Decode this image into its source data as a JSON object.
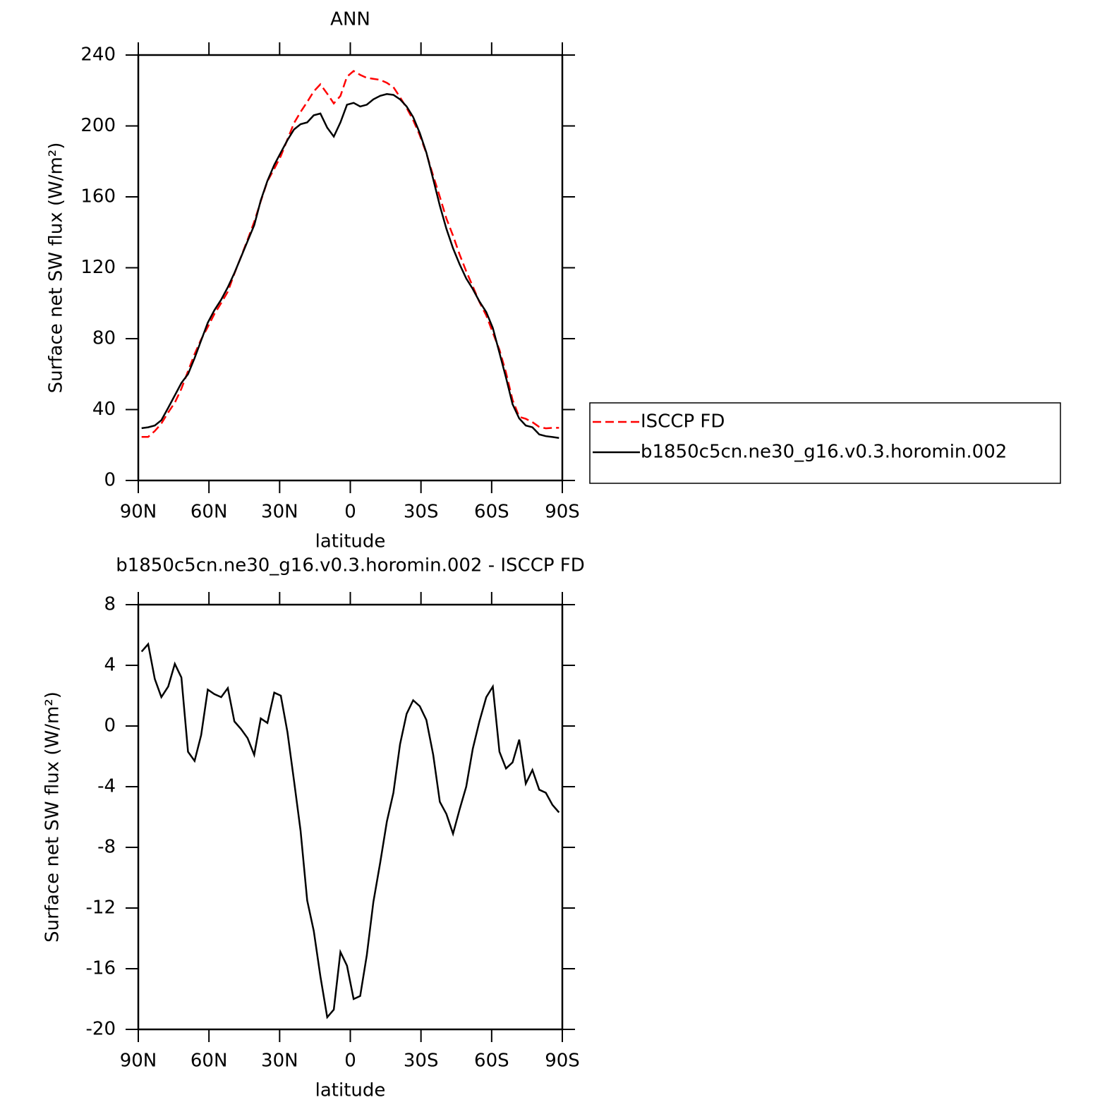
{
  "chart_data": [
    {
      "type": "line",
      "title": "ANN",
      "xlabel": "latitude",
      "ylabel": "Surface net SW flux (W/m²)",
      "xlim": [
        90,
        -90
      ],
      "xticks": [
        {
          "value": 90,
          "label": "90N"
        },
        {
          "value": 60,
          "label": "60N"
        },
        {
          "value": 30,
          "label": "30N"
        },
        0,
        {
          "value": -30,
          "label": "30S"
        },
        {
          "value": -60,
          "label": "60S"
        },
        {
          "value": -90,
          "label": "90S"
        }
      ],
      "ylim": [
        0,
        240
      ],
      "yticks": [
        0,
        40,
        80,
        120,
        160,
        200,
        240
      ],
      "legend": "right",
      "x": [
        88.6,
        85.8,
        83.0,
        80.2,
        77.3,
        74.5,
        71.7,
        68.9,
        66.1,
        63.3,
        60.5,
        57.7,
        54.8,
        52.0,
        49.2,
        46.4,
        43.6,
        40.8,
        38.0,
        35.2,
        32.3,
        29.5,
        26.7,
        23.9,
        21.1,
        18.3,
        15.5,
        12.7,
        9.8,
        7.0,
        4.2,
        1.4,
        -1.4,
        -4.2,
        -7.0,
        -9.8,
        -12.7,
        -15.5,
        -18.3,
        -21.1,
        -23.9,
        -26.7,
        -29.5,
        -32.3,
        -35.2,
        -38.0,
        -40.8,
        -43.6,
        -46.4,
        -49.2,
        -52.0,
        -54.8,
        -57.7,
        -60.5,
        -63.3,
        -66.1,
        -68.9,
        -71.7,
        -74.5,
        -77.3,
        -80.2,
        -83.0,
        -85.8,
        -88.6
      ],
      "series": [
        {
          "name": "ISCCP FD",
          "color": "#ff0000",
          "dash": true,
          "values": [
            24.6,
            24.6,
            27.9,
            32.1,
            38.4,
            43.9,
            51.8,
            61.7,
            71.3,
            79.6,
            86.6,
            93.9,
            100.1,
            106.5,
            116.7,
            126.2,
            135.8,
            145.9,
            157.5,
            168.8,
            175.8,
            183,
            192.4,
            201.6,
            207.9,
            213.5,
            219.5,
            223.5,
            218.2,
            212.7,
            216.9,
            227.8,
            231,
            228.8,
            227.1,
            226.6,
            226,
            224.3,
            221.9,
            216.2,
            210.2,
            203.3,
            194.7,
            184.6,
            171.9,
            160,
            147.8,
            138.1,
            127.5,
            118,
            109.5,
            100.7,
            93.1,
            83.4,
            73.7,
            60.8,
            45.4,
            35.9,
            34.8,
            32.9,
            30.2,
            29.4,
            29.7,
            29.7
          ]
        },
        {
          "name": "b1850c5cn.ne30_g16.v0.3.horomin.002",
          "color": "#000000",
          "dash": false,
          "values": [
            29.5,
            30,
            31,
            34,
            41,
            48,
            55,
            60,
            69,
            79,
            89,
            96,
            102,
            109,
            117,
            126,
            135,
            144,
            158,
            169,
            178,
            185,
            192,
            198,
            201,
            202,
            206,
            207,
            199,
            194,
            202,
            212,
            213,
            211,
            212,
            215,
            217,
            218,
            217.5,
            215,
            211,
            205,
            196,
            185,
            170,
            155,
            142,
            131,
            122,
            114,
            108,
            101,
            95,
            86,
            72,
            58,
            43,
            35,
            31,
            30,
            26,
            25,
            24.5,
            24
          ]
        }
      ]
    },
    {
      "type": "line",
      "title": "b1850c5cn.ne30_g16.v0.3.horomin.002 - ISCCP FD",
      "xlabel": "latitude",
      "ylabel": "Surface net SW flux (W/m²)",
      "xlim": [
        90,
        -90
      ],
      "xticks": [
        {
          "value": 90,
          "label": "90N"
        },
        {
          "value": 60,
          "label": "60N"
        },
        {
          "value": 30,
          "label": "30N"
        },
        0,
        {
          "value": -30,
          "label": "30S"
        },
        {
          "value": -60,
          "label": "60S"
        },
        {
          "value": -90,
          "label": "90S"
        }
      ],
      "ylim": [
        -20,
        8
      ],
      "yticks": [
        -20,
        -16,
        -12,
        -8,
        -4,
        0,
        4,
        8
      ],
      "x": [
        88.6,
        85.8,
        83.0,
        80.2,
        77.3,
        74.5,
        71.7,
        68.9,
        66.1,
        63.3,
        60.5,
        57.7,
        54.8,
        52.0,
        49.2,
        46.4,
        43.6,
        40.8,
        38.0,
        35.2,
        32.3,
        29.5,
        26.7,
        23.9,
        21.1,
        18.3,
        15.5,
        12.7,
        9.8,
        7.0,
        4.2,
        1.4,
        -1.4,
        -4.2,
        -7.0,
        -9.8,
        -12.7,
        -15.5,
        -18.3,
        -21.1,
        -23.9,
        -26.7,
        -29.5,
        -32.3,
        -35.2,
        -38.0,
        -40.8,
        -43.6,
        -46.4,
        -49.2,
        -52.0,
        -54.8,
        -57.7,
        -60.5,
        -63.3,
        -66.1,
        -68.9,
        -71.7,
        -74.5,
        -77.3,
        -80.2,
        -83.0,
        -85.8,
        -88.6
      ],
      "series": [
        {
          "color": "#000000",
          "dash": false,
          "values": [
            4.9,
            5.4,
            3.1,
            1.9,
            2.6,
            4.1,
            3.2,
            -1.7,
            -2.3,
            -0.6,
            2.4,
            2.1,
            1.9,
            2.5,
            0.3,
            -0.2,
            -0.8,
            -1.9,
            0.5,
            0.2,
            2.2,
            2.0,
            -0.4,
            -3.6,
            -6.9,
            -11.5,
            -13.5,
            -16.5,
            -19.2,
            -18.7,
            -14.9,
            -15.8,
            -18.0,
            -17.8,
            -15.1,
            -11.6,
            -9.0,
            -6.3,
            -4.4,
            -1.2,
            0.8,
            1.7,
            1.3,
            0.4,
            -1.9,
            -5.0,
            -5.8,
            -7.1,
            -5.5,
            -4.0,
            -1.5,
            0.3,
            1.9,
            2.6,
            -1.7,
            -2.8,
            -2.4,
            -0.9,
            -3.8,
            -2.9,
            -4.2,
            -4.4,
            -5.2,
            -5.7
          ]
        }
      ]
    }
  ]
}
